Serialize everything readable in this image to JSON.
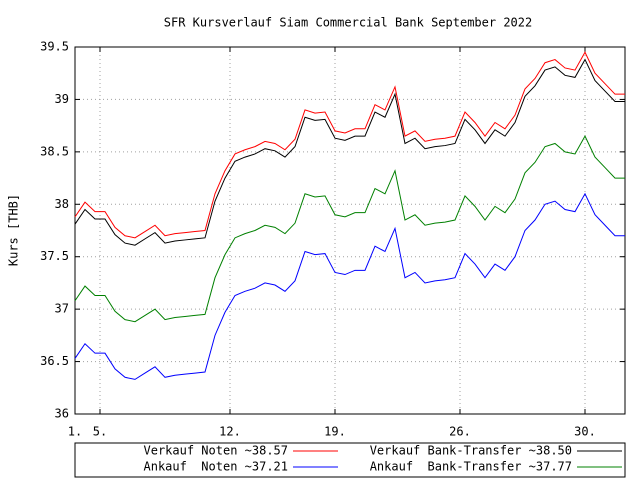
{
  "chart_data": {
    "type": "line",
    "title": "SFR Kursverlauf Siam Commercial Bank September 2022",
    "y_label": "Kurs [THB]",
    "x": [
      0,
      2,
      4,
      6,
      8,
      10,
      12,
      14,
      16,
      18,
      20,
      22,
      24,
      26,
      28,
      30,
      32,
      34,
      36,
      38,
      40,
      42,
      44,
      46,
      48,
      50,
      52,
      54,
      56,
      58,
      60,
      62,
      64,
      66,
      68,
      70,
      72,
      74,
      76,
      78,
      80,
      82,
      84,
      86,
      88,
      90,
      92,
      94,
      96,
      98,
      100,
      102,
      104,
      106,
      108,
      110
    ],
    "xlim": [
      0,
      110
    ],
    "xticks": [
      {
        "value": 0,
        "label": "1."
      },
      {
        "value": 5,
        "label": "5."
      },
      {
        "value": 31,
        "label": "12."
      },
      {
        "value": 52,
        "label": "19."
      },
      {
        "value": 77,
        "label": "26."
      },
      {
        "value": 102,
        "label": "30."
      }
    ],
    "ylim": [
      36,
      39.5
    ],
    "yticks": [
      36,
      36.5,
      37,
      37.5,
      38,
      38.5,
      39,
      39.5
    ],
    "grid": true,
    "series": [
      {
        "name": "Verkauf Noten ~38.57",
        "color": "#ff0000",
        "values": [
          37.88,
          38.02,
          37.93,
          37.93,
          37.78,
          37.7,
          37.68,
          37.74,
          37.8,
          37.7,
          37.72,
          37.73,
          37.74,
          37.75,
          38.1,
          38.32,
          38.48,
          38.52,
          38.55,
          38.6,
          38.58,
          38.52,
          38.62,
          38.9,
          38.87,
          38.88,
          38.7,
          38.68,
          38.72,
          38.72,
          38.95,
          38.9,
          39.12,
          38.65,
          38.7,
          38.6,
          38.62,
          38.63,
          38.65,
          38.88,
          38.78,
          38.65,
          38.78,
          38.72,
          38.85,
          39.1,
          39.2,
          39.35,
          39.38,
          39.3,
          39.28,
          39.45,
          39.25,
          39.15,
          39.05,
          39.05
        ]
      },
      {
        "name": "Verkauf Bank-Transfer ~38.50",
        "color": "#000000",
        "values": [
          37.81,
          37.95,
          37.86,
          37.86,
          37.71,
          37.63,
          37.61,
          37.67,
          37.73,
          37.63,
          37.65,
          37.66,
          37.67,
          37.68,
          38.03,
          38.25,
          38.41,
          38.45,
          38.48,
          38.53,
          38.51,
          38.45,
          38.55,
          38.83,
          38.8,
          38.81,
          38.63,
          38.61,
          38.65,
          38.65,
          38.88,
          38.83,
          39.05,
          38.58,
          38.63,
          38.53,
          38.55,
          38.56,
          38.58,
          38.81,
          38.71,
          38.58,
          38.71,
          38.65,
          38.78,
          39.03,
          39.13,
          39.28,
          39.31,
          39.23,
          39.21,
          39.38,
          39.18,
          39.08,
          38.98,
          38.98
        ]
      },
      {
        "name": "Ankauf  Noten ~37.21",
        "color": "#0000ff",
        "values": [
          36.53,
          36.67,
          36.58,
          36.58,
          36.43,
          36.35,
          36.33,
          36.39,
          36.45,
          36.35,
          36.37,
          36.38,
          36.39,
          36.4,
          36.75,
          36.97,
          37.13,
          37.17,
          37.2,
          37.25,
          37.23,
          37.17,
          37.27,
          37.55,
          37.52,
          37.53,
          37.35,
          37.33,
          37.37,
          37.37,
          37.6,
          37.55,
          37.77,
          37.3,
          37.35,
          37.25,
          37.27,
          37.28,
          37.3,
          37.53,
          37.43,
          37.3,
          37.43,
          37.37,
          37.5,
          37.75,
          37.85,
          38.0,
          38.03,
          37.95,
          37.93,
          38.1,
          37.9,
          37.8,
          37.7,
          37.7
        ]
      },
      {
        "name": "Ankauf  Bank-Transfer ~37.77",
        "color": "#008000",
        "values": [
          37.08,
          37.22,
          37.13,
          37.13,
          36.98,
          36.9,
          36.88,
          36.94,
          37.0,
          36.9,
          36.92,
          36.93,
          36.94,
          36.95,
          37.3,
          37.52,
          37.68,
          37.72,
          37.75,
          37.8,
          37.78,
          37.72,
          37.82,
          38.1,
          38.07,
          38.08,
          37.9,
          37.88,
          37.92,
          37.92,
          38.15,
          38.1,
          38.32,
          37.85,
          37.9,
          37.8,
          37.82,
          37.83,
          37.85,
          38.08,
          37.98,
          37.85,
          37.98,
          37.92,
          38.05,
          38.3,
          38.4,
          38.55,
          38.58,
          38.5,
          38.48,
          38.65,
          38.45,
          38.35,
          38.25,
          38.25
        ]
      }
    ]
  }
}
